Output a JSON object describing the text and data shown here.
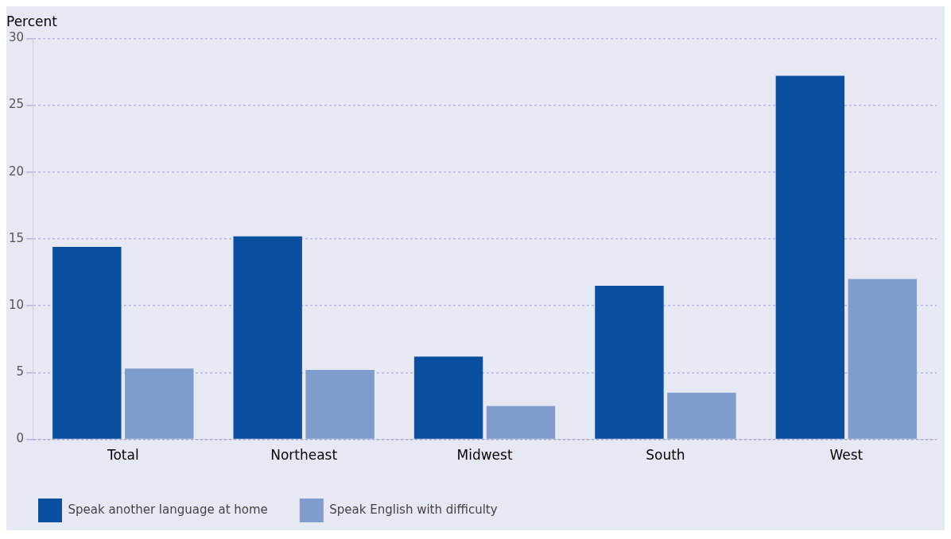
{
  "chart_data": {
    "type": "bar",
    "ylabel": "Percent",
    "categories": [
      "Total",
      "Northeast",
      "Midwest",
      "South",
      "West"
    ],
    "series": [
      {
        "name": "Speak another language at home",
        "color": "#0a4fa0",
        "values": [
          14.4,
          15.2,
          6.2,
          11.5,
          27.2
        ]
      },
      {
        "name": "Speak English with difficulty",
        "color": "#7f9ccc",
        "values": [
          5.3,
          5.2,
          2.5,
          3.5,
          12.0
        ]
      }
    ],
    "ylim": [
      0,
      30
    ],
    "yticks": [
      0,
      5,
      10,
      15,
      20,
      25,
      30
    ],
    "grid": "y",
    "legend": "bottom"
  }
}
